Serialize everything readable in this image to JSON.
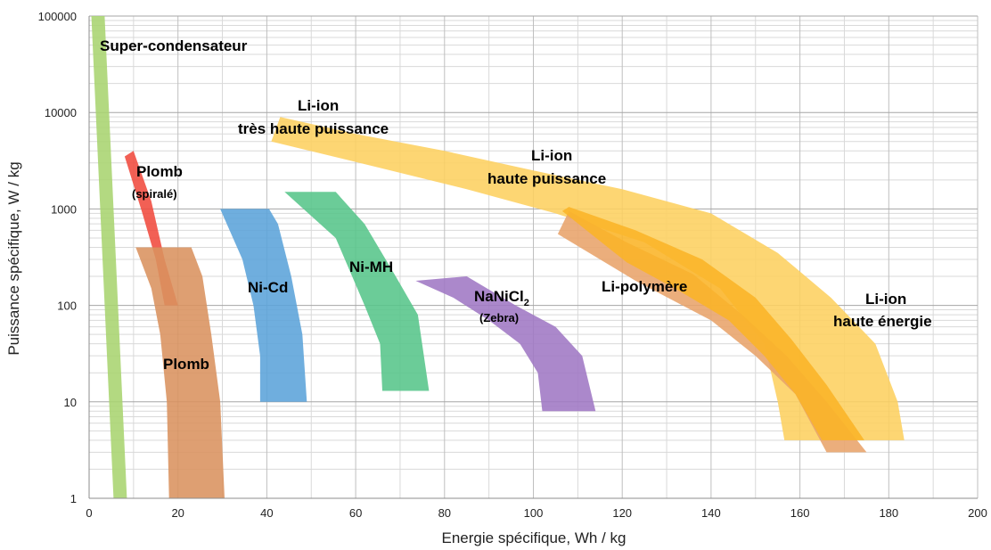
{
  "chart_data": {
    "type": "area",
    "xlabel": "Energie spécifique, Wh / kg",
    "ylabel": "Puissance spécifique, W / kg",
    "xlim": [
      0,
      200
    ],
    "ylim": [
      1,
      100000
    ],
    "yscale": "log",
    "grid": true,
    "x_ticks": [
      "0",
      "20",
      "40",
      "60",
      "80",
      "100",
      "120",
      "140",
      "160",
      "180",
      "200"
    ],
    "y_ticks": [
      "1",
      "10",
      "100",
      "1000",
      "10000",
      "100000"
    ],
    "series": [
      {
        "name": "Super-condensateur",
        "color": "#a9d46f",
        "region": [
          [
            0.5,
            100000
          ],
          [
            3.5,
            100000
          ],
          [
            8.5,
            1
          ],
          [
            5.5,
            1
          ]
        ]
      },
      {
        "name": "Plomb (spiralé)",
        "color": "#f04a3e",
        "region": [
          [
            8,
            3500
          ],
          [
            10,
            4000
          ],
          [
            14,
            1200
          ],
          [
            17,
            300
          ],
          [
            20,
            100
          ],
          [
            17,
            100
          ],
          [
            15,
            300
          ],
          [
            12,
            900
          ]
        ]
      },
      {
        "name": "Plomb",
        "color": "#d9925f",
        "region": [
          [
            10.5,
            400
          ],
          [
            23,
            400
          ],
          [
            25.5,
            200
          ],
          [
            27.5,
            50
          ],
          [
            29.5,
            10
          ],
          [
            30.5,
            1
          ],
          [
            18,
            1
          ],
          [
            17.5,
            10
          ],
          [
            16,
            50
          ],
          [
            14,
            150
          ]
        ]
      },
      {
        "name": "Ni-Cd",
        "color": "#5ba3d9",
        "region": [
          [
            29.5,
            1000
          ],
          [
            40.5,
            1000
          ],
          [
            42.5,
            700
          ],
          [
            45.5,
            200
          ],
          [
            48,
            50
          ],
          [
            49,
            10
          ],
          [
            38.5,
            10
          ],
          [
            38.5,
            30
          ],
          [
            37,
            100
          ],
          [
            34.5,
            300
          ]
        ]
      },
      {
        "name": "Ni-MH",
        "color": "#57c58a",
        "region": [
          [
            44,
            1500
          ],
          [
            55.5,
            1500
          ],
          [
            62,
            700
          ],
          [
            69,
            200
          ],
          [
            74,
            80
          ],
          [
            76.5,
            13
          ],
          [
            66,
            13
          ],
          [
            65.5,
            40
          ],
          [
            62,
            100
          ],
          [
            55.5,
            500
          ]
        ]
      },
      {
        "name": "NaNiCl2 (Zebra)",
        "color": "#9f78c4",
        "region": [
          [
            73.5,
            180
          ],
          [
            85,
            200
          ],
          [
            96,
            100
          ],
          [
            105,
            60
          ],
          [
            111,
            30
          ],
          [
            114,
            8
          ],
          [
            102,
            8
          ],
          [
            101,
            20
          ],
          [
            97,
            40
          ],
          [
            90,
            70
          ],
          [
            82,
            120
          ]
        ]
      },
      {
        "name": "Li-ion très haute puissance / haute puissance",
        "color": "#fdd060",
        "region": [
          [
            41,
            5000
          ],
          [
            43,
            9000
          ],
          [
            60,
            6000
          ],
          [
            80,
            4000
          ],
          [
            100,
            2500
          ],
          [
            120,
            1600
          ],
          [
            140,
            900
          ],
          [
            155,
            350
          ],
          [
            167,
            120
          ],
          [
            177,
            40
          ],
          [
            182,
            10
          ],
          [
            183.5,
            4
          ],
          [
            156.5,
            4
          ],
          [
            155,
            10
          ],
          [
            152,
            40
          ],
          [
            142,
            150
          ],
          [
            125,
            450
          ],
          [
            105,
            900
          ],
          [
            85,
            1600
          ],
          [
            65,
            2700
          ]
        ]
      },
      {
        "name": "Li-polymère",
        "color": "#e8a36a",
        "region": [
          [
            105.5,
            550
          ],
          [
            108,
            950
          ],
          [
            121,
            450
          ],
          [
            136,
            210
          ],
          [
            147,
            80
          ],
          [
            157,
            30
          ],
          [
            166,
            10
          ],
          [
            175,
            3
          ],
          [
            166,
            3
          ],
          [
            159,
            12
          ],
          [
            150,
            30
          ],
          [
            140,
            70
          ],
          [
            123,
            180
          ]
        ]
      },
      {
        "name": "Li-ion haute énergie",
        "color": "#fbb427",
        "region": [
          [
            106.5,
            950
          ],
          [
            108,
            1050
          ],
          [
            123,
            600
          ],
          [
            138,
            300
          ],
          [
            150,
            120
          ],
          [
            158,
            45
          ],
          [
            166,
            15
          ],
          [
            174.5,
            4
          ],
          [
            165,
            4
          ],
          [
            159,
            12
          ],
          [
            152,
            30
          ],
          [
            144,
            70
          ],
          [
            133,
            140
          ],
          [
            121,
            280
          ]
        ]
      }
    ],
    "annotations": {
      "supercap": "Super-condensateur",
      "plomb_spirale_1": "Plomb",
      "plomb_spirale_2": "(spiralé)",
      "plomb": "Plomb",
      "nicd": "Ni-Cd",
      "nimh": "Ni-MH",
      "nanicl_main": "NaNiCl",
      "nanicl_sub": "2",
      "zebra": "(Zebra)",
      "liion_thp_1": "Li-ion",
      "liion_thp_2": "très haute puissance",
      "liion_hp_1": "Li-ion",
      "liion_hp_2": "haute puissance",
      "lipoly": "Li-polymère",
      "liion_he_1": "Li-ion",
      "liion_he_2": "haute énergie"
    }
  }
}
